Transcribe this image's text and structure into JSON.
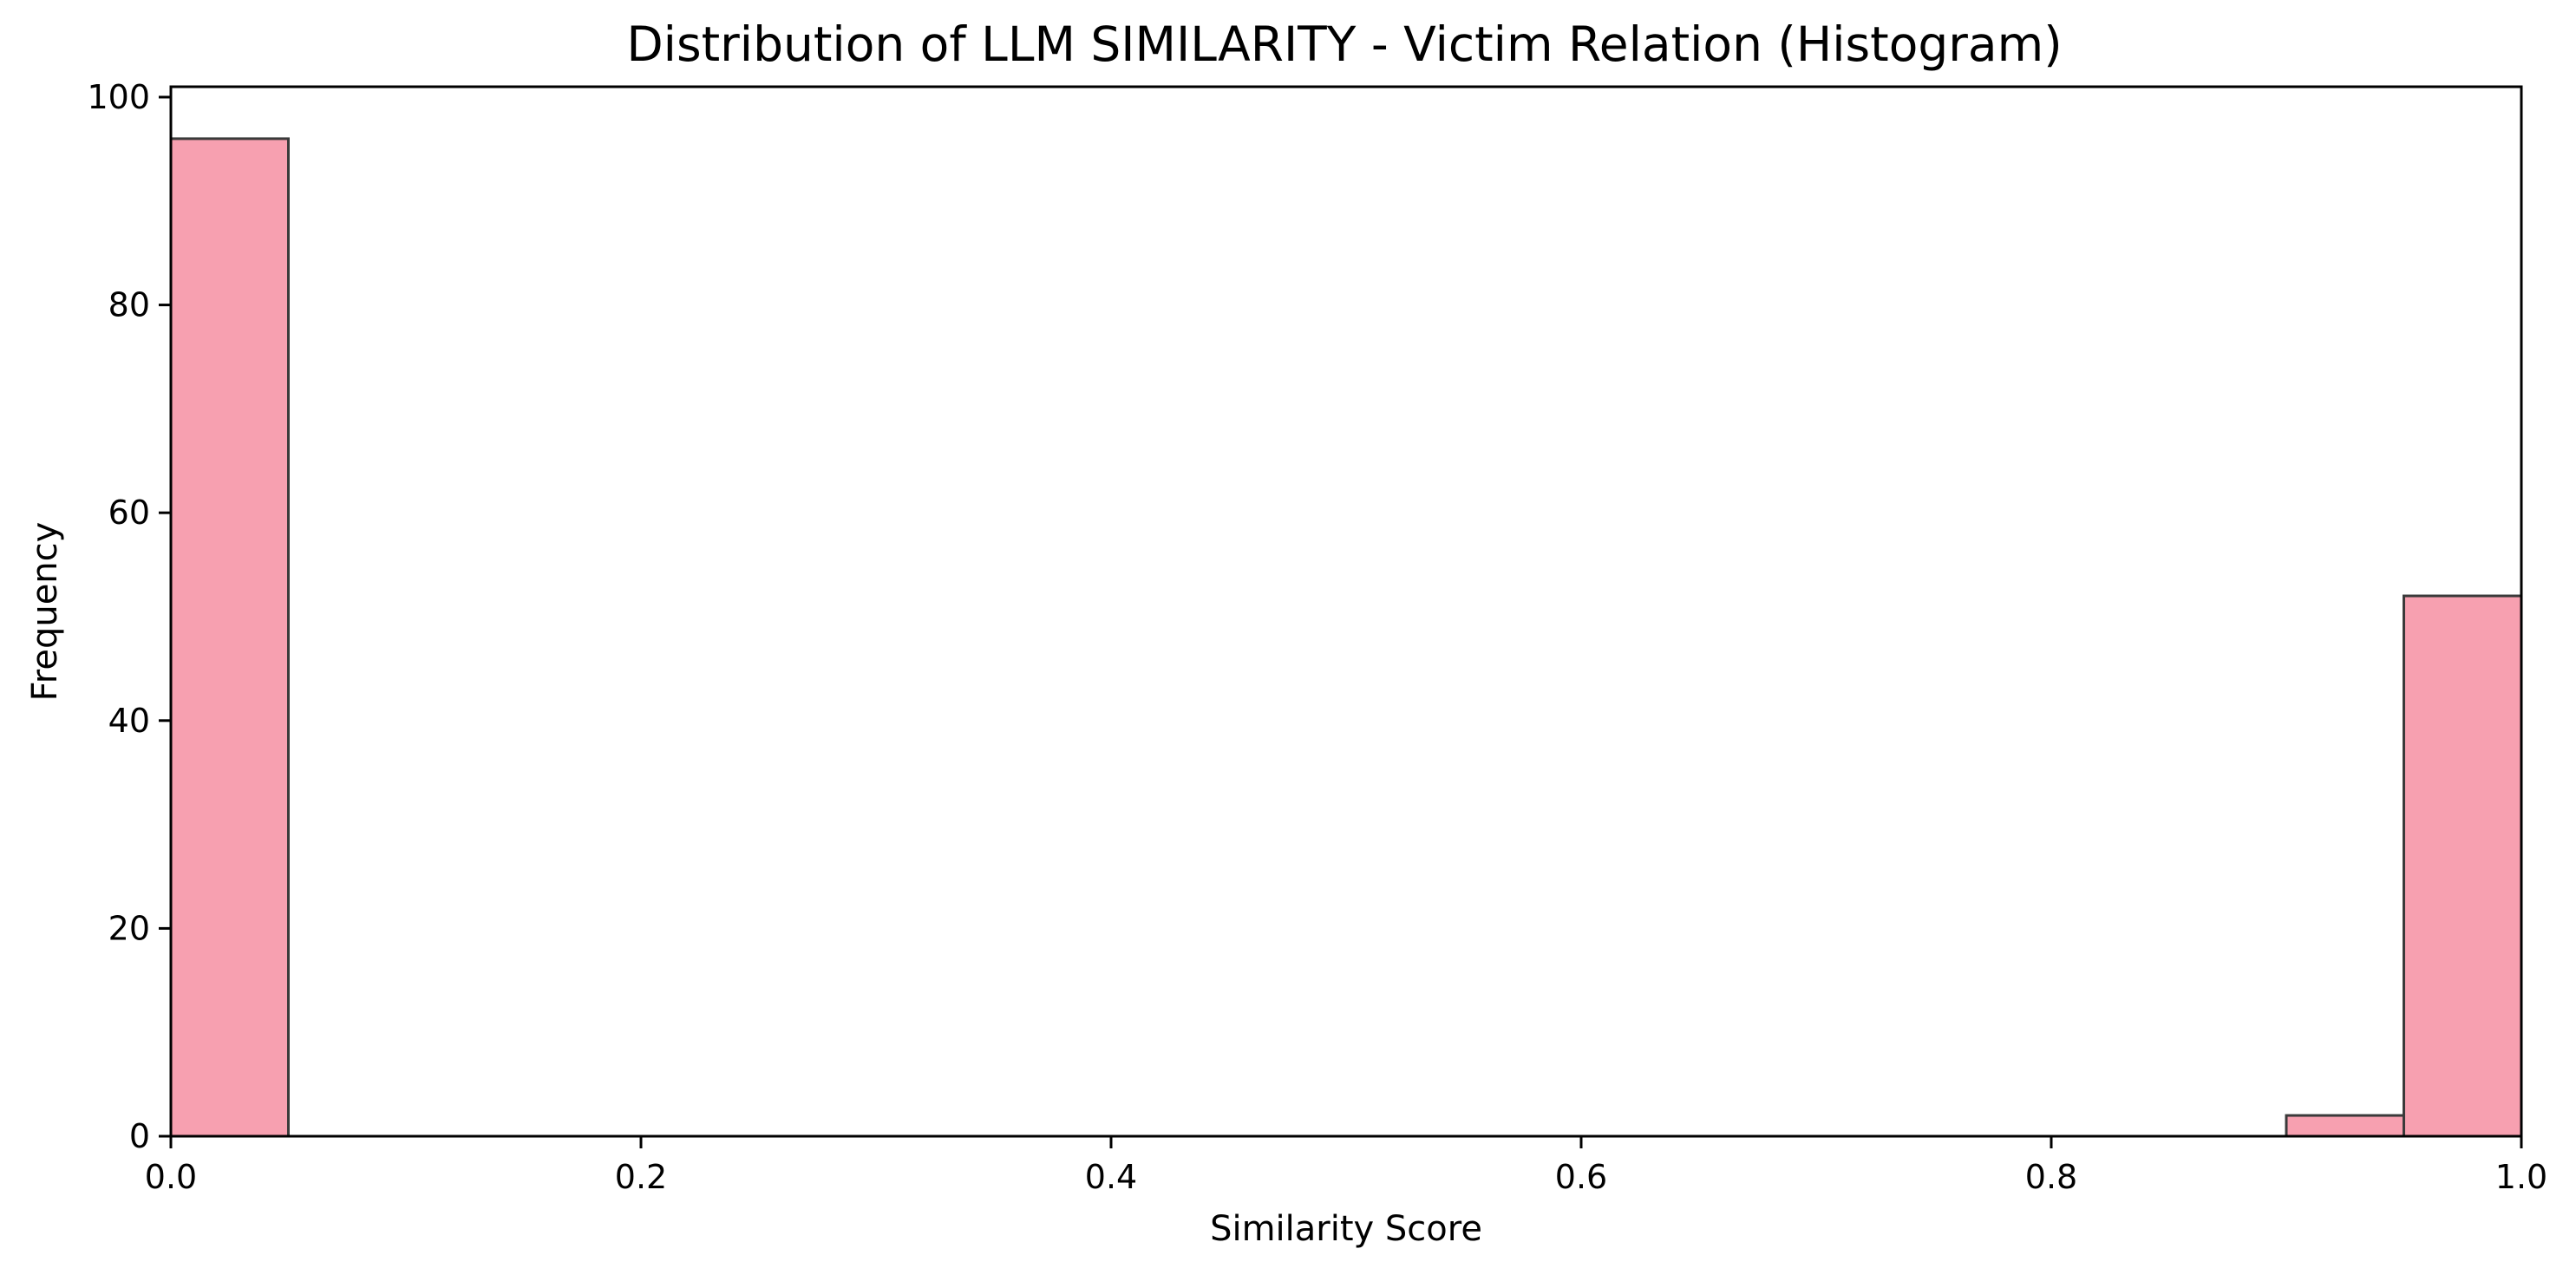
{
  "chart_data": {
    "type": "bar",
    "title": "Distribution of LLM SIMILARITY - Victim Relation (Histogram)",
    "xlabel": "Similarity Score",
    "ylabel": "Frequency",
    "xlim": [
      0.0,
      1.0
    ],
    "ylim": [
      0,
      101
    ],
    "bin_width": 0.05,
    "bins": [
      {
        "start": 0.0,
        "end": 0.05,
        "count": 96
      },
      {
        "start": 0.9,
        "end": 0.95,
        "count": 2
      },
      {
        "start": 0.95,
        "end": 1.0,
        "count": 52
      }
    ],
    "x_ticks": [
      0.0,
      0.2,
      0.4,
      0.6,
      0.8,
      1.0
    ],
    "x_tick_labels": [
      "0.0",
      "0.2",
      "0.4",
      "0.6",
      "0.8",
      "1.0"
    ],
    "y_ticks": [
      0,
      20,
      40,
      60,
      80,
      100
    ],
    "y_tick_labels": [
      "0",
      "20",
      "40",
      "60",
      "80",
      "100"
    ],
    "grid": false,
    "bar_color": "#f7a0b0",
    "bar_edge_color": "#3a3a3a"
  }
}
